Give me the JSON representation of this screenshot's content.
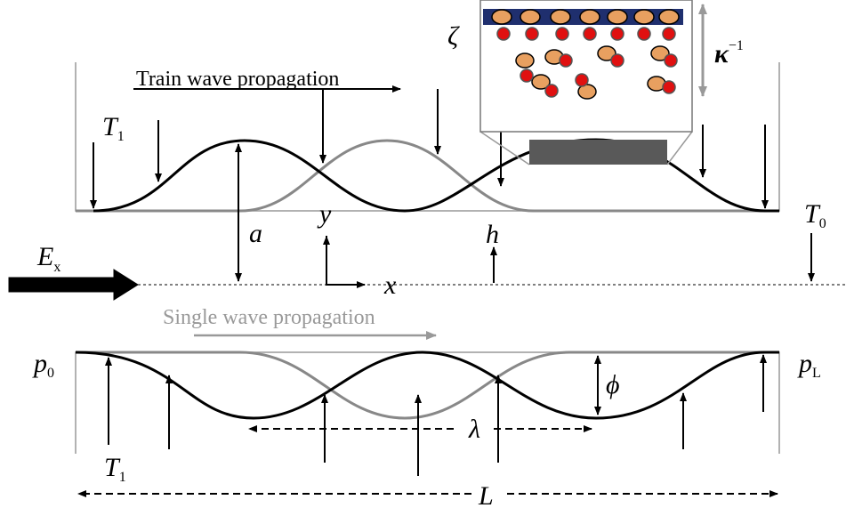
{
  "labels": {
    "train_wave": "Train wave propagation",
    "single_wave": "Single wave propagation",
    "zeta": "ζ",
    "kappa": {
      "base": "κ",
      "superscript": "−1"
    },
    "T1_top": {
      "base": "T",
      "subscript": "1"
    },
    "T0": {
      "base": "T",
      "subscript": "0"
    },
    "a": "a",
    "y": "y",
    "x": "x",
    "h": "h",
    "Ex": {
      "base": "E",
      "subscript": "x"
    },
    "p0": {
      "base": "p",
      "subscript": "0"
    },
    "pL": {
      "base": "p",
      "subscript": "L"
    },
    "phi": "ϕ",
    "lambda": "λ",
    "T1_bottom": {
      "base": "T",
      "subscript": "1"
    },
    "L": "L"
  }
}
